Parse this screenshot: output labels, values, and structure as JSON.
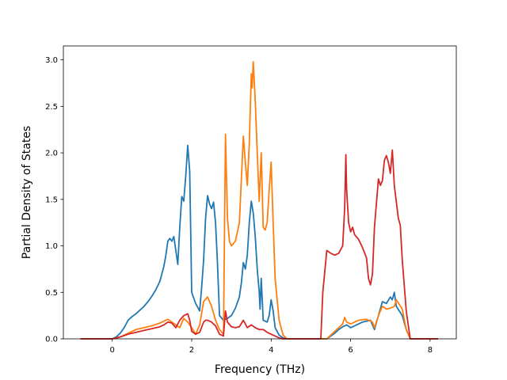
{
  "chart_data": {
    "type": "line",
    "title": "",
    "xlabel": "Frequency (THz)",
    "ylabel": "Partial Density of States",
    "xlim": [
      -1.23,
      8.66
    ],
    "ylim": [
      0,
      3.15
    ],
    "xticks": [
      0,
      2,
      4,
      6,
      8
    ],
    "xtick_labels": [
      "0",
      "2",
      "4",
      "6",
      "8"
    ],
    "yticks": [
      0,
      0.5,
      1.0,
      1.5,
      2.0,
      2.5,
      3.0
    ],
    "ytick_labels": [
      "0.0",
      "0.5",
      "1.0",
      "1.5",
      "2.0",
      "2.5",
      "3.0"
    ],
    "grid": false,
    "legend": "none",
    "series": [
      {
        "color": "#1f77b4",
        "points": [
          [
            -0.8,
            0
          ],
          [
            0,
            0
          ],
          [
            0.1,
            0.02
          ],
          [
            0.2,
            0.06
          ],
          [
            0.3,
            0.12
          ],
          [
            0.4,
            0.2
          ],
          [
            0.5,
            0.24
          ],
          [
            0.6,
            0.27
          ],
          [
            0.7,
            0.31
          ],
          [
            0.8,
            0.35
          ],
          [
            0.9,
            0.4
          ],
          [
            1.0,
            0.46
          ],
          [
            1.1,
            0.53
          ],
          [
            1.2,
            0.62
          ],
          [
            1.3,
            0.78
          ],
          [
            1.35,
            0.9
          ],
          [
            1.4,
            1.05
          ],
          [
            1.45,
            1.08
          ],
          [
            1.5,
            1.05
          ],
          [
            1.55,
            1.1
          ],
          [
            1.6,
            0.95
          ],
          [
            1.65,
            0.8
          ],
          [
            1.7,
            1.2
          ],
          [
            1.75,
            1.53
          ],
          [
            1.8,
            1.48
          ],
          [
            1.85,
            1.75
          ],
          [
            1.9,
            2.08
          ],
          [
            1.95,
            1.8
          ],
          [
            2.0,
            0.5
          ],
          [
            2.1,
            0.38
          ],
          [
            2.2,
            0.3
          ],
          [
            2.25,
            0.55
          ],
          [
            2.3,
            0.85
          ],
          [
            2.35,
            1.3
          ],
          [
            2.4,
            1.54
          ],
          [
            2.45,
            1.45
          ],
          [
            2.5,
            1.4
          ],
          [
            2.55,
            1.47
          ],
          [
            2.6,
            1.25
          ],
          [
            2.65,
            0.8
          ],
          [
            2.7,
            0.25
          ],
          [
            2.8,
            0.2
          ],
          [
            2.9,
            0.22
          ],
          [
            3.0,
            0.25
          ],
          [
            3.1,
            0.33
          ],
          [
            3.2,
            0.45
          ],
          [
            3.25,
            0.6
          ],
          [
            3.3,
            0.82
          ],
          [
            3.35,
            0.75
          ],
          [
            3.4,
            0.9
          ],
          [
            3.45,
            1.25
          ],
          [
            3.5,
            1.48
          ],
          [
            3.55,
            1.35
          ],
          [
            3.6,
            1.1
          ],
          [
            3.65,
            0.75
          ],
          [
            3.7,
            0.5
          ],
          [
            3.72,
            0.32
          ],
          [
            3.75,
            0.65
          ],
          [
            3.8,
            0.2
          ],
          [
            3.9,
            0.18
          ],
          [
            3.95,
            0.25
          ],
          [
            4.0,
            0.42
          ],
          [
            4.05,
            0.3
          ],
          [
            4.1,
            0.12
          ],
          [
            4.2,
            0.04
          ],
          [
            4.3,
            0.01
          ],
          [
            4.4,
            0
          ],
          [
            5.4,
            0
          ],
          [
            5.5,
            0.03
          ],
          [
            5.6,
            0.06
          ],
          [
            5.7,
            0.1
          ],
          [
            5.8,
            0.13
          ],
          [
            5.9,
            0.15
          ],
          [
            6.0,
            0.12
          ],
          [
            6.1,
            0.14
          ],
          [
            6.2,
            0.16
          ],
          [
            6.3,
            0.18
          ],
          [
            6.5,
            0.2
          ],
          [
            6.6,
            0.1
          ],
          [
            6.7,
            0.25
          ],
          [
            6.8,
            0.4
          ],
          [
            6.9,
            0.38
          ],
          [
            7.0,
            0.45
          ],
          [
            7.05,
            0.42
          ],
          [
            7.1,
            0.5
          ],
          [
            7.15,
            0.35
          ],
          [
            7.3,
            0.25
          ],
          [
            7.4,
            0.1
          ],
          [
            7.5,
            0
          ],
          [
            8.2,
            0
          ]
        ]
      },
      {
        "color": "#ff7f0e",
        "points": [
          [
            -0.8,
            0
          ],
          [
            0,
            0
          ],
          [
            0.2,
            0.02
          ],
          [
            0.4,
            0.06
          ],
          [
            0.6,
            0.1
          ],
          [
            0.8,
            0.12
          ],
          [
            1.0,
            0.14
          ],
          [
            1.2,
            0.17
          ],
          [
            1.4,
            0.21
          ],
          [
            1.6,
            0.15
          ],
          [
            1.7,
            0.12
          ],
          [
            1.8,
            0.22
          ],
          [
            1.9,
            0.18
          ],
          [
            2.0,
            0.12
          ],
          [
            2.1,
            0.05
          ],
          [
            2.2,
            0.15
          ],
          [
            2.3,
            0.4
          ],
          [
            2.4,
            0.45
          ],
          [
            2.5,
            0.35
          ],
          [
            2.6,
            0.2
          ],
          [
            2.7,
            0.1
          ],
          [
            2.8,
            0.05
          ],
          [
            2.85,
            2.2
          ],
          [
            2.9,
            1.3
          ],
          [
            2.95,
            1.05
          ],
          [
            3.0,
            1.0
          ],
          [
            3.1,
            1.05
          ],
          [
            3.2,
            1.25
          ],
          [
            3.3,
            2.18
          ],
          [
            3.35,
            1.9
          ],
          [
            3.4,
            1.65
          ],
          [
            3.45,
            2.1
          ],
          [
            3.5,
            2.85
          ],
          [
            3.52,
            2.7
          ],
          [
            3.55,
            2.98
          ],
          [
            3.6,
            2.55
          ],
          [
            3.65,
            2.0
          ],
          [
            3.7,
            1.48
          ],
          [
            3.75,
            2.0
          ],
          [
            3.8,
            1.2
          ],
          [
            3.85,
            1.17
          ],
          [
            3.9,
            1.25
          ],
          [
            3.95,
            1.6
          ],
          [
            4.0,
            1.9
          ],
          [
            4.05,
            1.25
          ],
          [
            4.1,
            0.65
          ],
          [
            4.2,
            0.2
          ],
          [
            4.3,
            0.04
          ],
          [
            4.4,
            0
          ],
          [
            5.4,
            0
          ],
          [
            5.5,
            0.04
          ],
          [
            5.6,
            0.08
          ],
          [
            5.7,
            0.12
          ],
          [
            5.8,
            0.16
          ],
          [
            5.85,
            0.23
          ],
          [
            5.9,
            0.18
          ],
          [
            6.0,
            0.16
          ],
          [
            6.2,
            0.2
          ],
          [
            6.4,
            0.21
          ],
          [
            6.55,
            0.18
          ],
          [
            6.6,
            0.12
          ],
          [
            6.7,
            0.25
          ],
          [
            6.8,
            0.35
          ],
          [
            6.9,
            0.32
          ],
          [
            7.0,
            0.33
          ],
          [
            7.1,
            0.35
          ],
          [
            7.15,
            0.42
          ],
          [
            7.3,
            0.32
          ],
          [
            7.4,
            0.1
          ],
          [
            7.5,
            0
          ],
          [
            8.2,
            0
          ]
        ]
      },
      {
        "color": "#d62728",
        "points": [
          [
            -0.8,
            0
          ],
          [
            0,
            0
          ],
          [
            0.2,
            0.02
          ],
          [
            0.4,
            0.05
          ],
          [
            0.6,
            0.07
          ],
          [
            0.8,
            0.09
          ],
          [
            1.0,
            0.11
          ],
          [
            1.2,
            0.13
          ],
          [
            1.3,
            0.15
          ],
          [
            1.4,
            0.18
          ],
          [
            1.5,
            0.17
          ],
          [
            1.6,
            0.12
          ],
          [
            1.7,
            0.2
          ],
          [
            1.8,
            0.25
          ],
          [
            1.9,
            0.27
          ],
          [
            1.95,
            0.2
          ],
          [
            2.0,
            0.08
          ],
          [
            2.1,
            0.05
          ],
          [
            2.2,
            0.07
          ],
          [
            2.3,
            0.18
          ],
          [
            2.35,
            0.2
          ],
          [
            2.4,
            0.2
          ],
          [
            2.5,
            0.18
          ],
          [
            2.6,
            0.14
          ],
          [
            2.7,
            0.05
          ],
          [
            2.8,
            0.03
          ],
          [
            2.85,
            0.3
          ],
          [
            2.9,
            0.18
          ],
          [
            3.0,
            0.13
          ],
          [
            3.1,
            0.12
          ],
          [
            3.2,
            0.13
          ],
          [
            3.3,
            0.2
          ],
          [
            3.4,
            0.12
          ],
          [
            3.5,
            0.15
          ],
          [
            3.6,
            0.12
          ],
          [
            3.7,
            0.1
          ],
          [
            3.8,
            0.1
          ],
          [
            3.9,
            0.07
          ],
          [
            4.0,
            0.05
          ],
          [
            4.1,
            0.03
          ],
          [
            4.2,
            0.01
          ],
          [
            4.3,
            0
          ],
          [
            5.25,
            0
          ],
          [
            5.3,
            0.5
          ],
          [
            5.4,
            0.95
          ],
          [
            5.5,
            0.92
          ],
          [
            5.6,
            0.9
          ],
          [
            5.7,
            0.92
          ],
          [
            5.8,
            1.0
          ],
          [
            5.85,
            1.4
          ],
          [
            5.88,
            1.98
          ],
          [
            5.9,
            1.6
          ],
          [
            5.95,
            1.25
          ],
          [
            6.0,
            1.15
          ],
          [
            6.05,
            1.2
          ],
          [
            6.1,
            1.12
          ],
          [
            6.2,
            1.07
          ],
          [
            6.3,
            0.98
          ],
          [
            6.4,
            0.87
          ],
          [
            6.45,
            0.65
          ],
          [
            6.5,
            0.58
          ],
          [
            6.55,
            0.7
          ],
          [
            6.6,
            1.2
          ],
          [
            6.7,
            1.72
          ],
          [
            6.75,
            1.65
          ],
          [
            6.8,
            1.7
          ],
          [
            6.85,
            1.92
          ],
          [
            6.9,
            1.97
          ],
          [
            6.95,
            1.9
          ],
          [
            7.0,
            1.78
          ],
          [
            7.05,
            2.03
          ],
          [
            7.1,
            1.65
          ],
          [
            7.2,
            1.3
          ],
          [
            7.25,
            1.22
          ],
          [
            7.3,
            0.85
          ],
          [
            7.4,
            0.3
          ],
          [
            7.5,
            0
          ],
          [
            8.2,
            0
          ]
        ]
      }
    ]
  }
}
